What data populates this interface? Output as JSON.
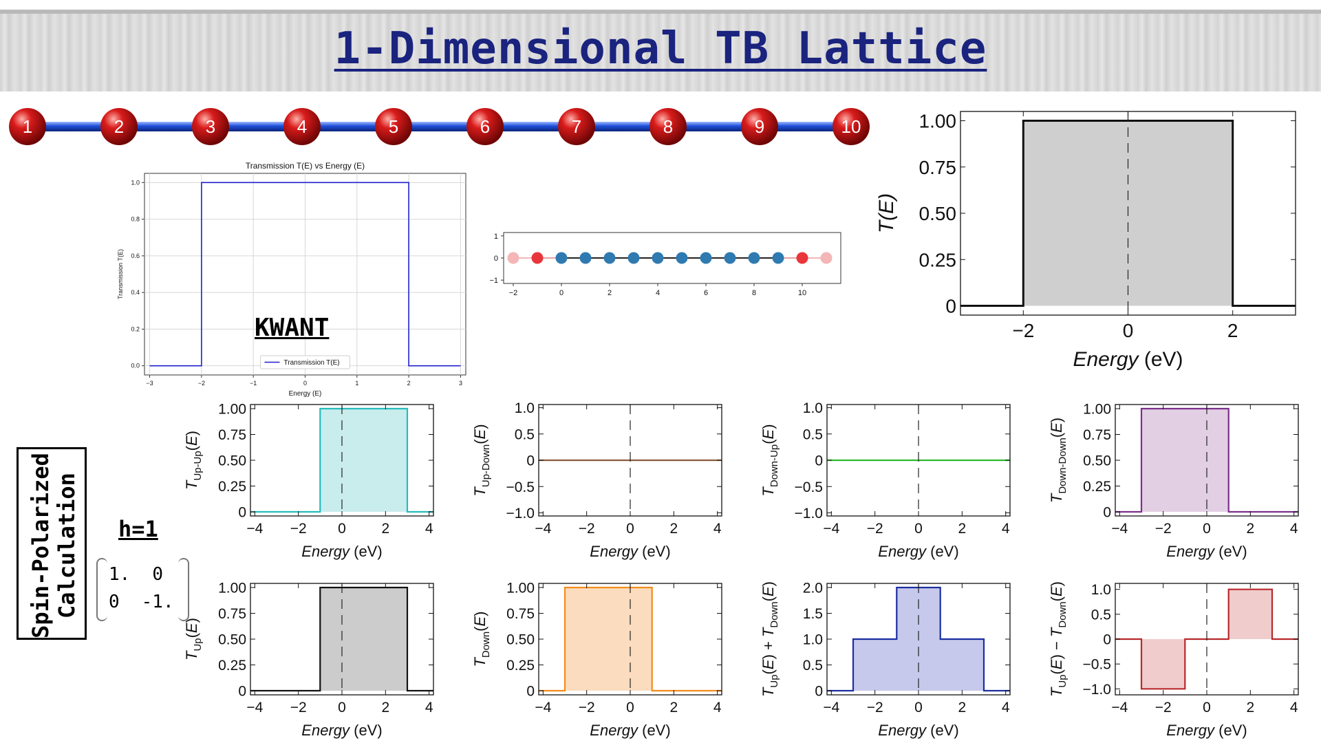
{
  "header": {
    "title": "1-Dimensional TB Lattice"
  },
  "sites": {
    "labels": [
      "1",
      "2",
      "3",
      "4",
      "5",
      "6",
      "7",
      "8",
      "9",
      "10"
    ],
    "atom_color": "#d81b1b",
    "bond_color": "#1e4fd8"
  },
  "sidebar": {
    "spin_label": "Spin-Polarized Calculation",
    "h_label": "h=1",
    "matrix": [
      [
        "1.",
        "0"
      ],
      [
        "0",
        "-1."
      ]
    ]
  },
  "kwant_label": "KWANT",
  "chart_data": [
    {
      "id": "kwant",
      "type": "line",
      "title": "Transmission T(E) vs Energy (E)",
      "xlabel": "Energy (E)",
      "ylabel": "Transmission T(E)",
      "xlim": [
        -3.1,
        3.1
      ],
      "ylim": [
        -0.05,
        1.05
      ],
      "xticks": [
        -3,
        -2,
        -1,
        0,
        1,
        2,
        3
      ],
      "yticks": [
        0.0,
        0.2,
        0.4,
        0.6,
        0.8,
        1.0
      ],
      "xtick_labels": [
        "−3",
        "−2",
        "−1",
        "0",
        "1",
        "2",
        "3"
      ],
      "ytick_labels": [
        "0.0",
        "0.2",
        "0.4",
        "0.6",
        "0.8",
        "1.0"
      ],
      "grid": true,
      "legend": "bottom-center",
      "color": "#1f1fd0",
      "series": [
        {
          "name": "Transmission T(E)",
          "x": [
            -3,
            -2,
            -2,
            2,
            2,
            3
          ],
          "y": [
            0,
            0,
            1,
            1,
            0,
            0
          ]
        }
      ]
    },
    {
      "id": "lattice",
      "type": "scatter",
      "xlim": [
        -2.4,
        11.6
      ],
      "ylim": [
        -1.15,
        1.15
      ],
      "xticks": [
        -2,
        0,
        2,
        4,
        6,
        8,
        10
      ],
      "yticks": [
        -1,
        0,
        1
      ],
      "xtick_labels": [
        "−2",
        "0",
        "2",
        "4",
        "6",
        "8",
        "10"
      ],
      "ytick_labels": [
        "−1",
        "0",
        "1"
      ],
      "points": [
        {
          "x": -2,
          "y": 0,
          "color": "#f4b6b6"
        },
        {
          "x": -1,
          "y": 0,
          "color": "#e8363a"
        },
        {
          "x": 0,
          "y": 0,
          "color": "#2f7ab0"
        },
        {
          "x": 1,
          "y": 0,
          "color": "#2f7ab0"
        },
        {
          "x": 2,
          "y": 0,
          "color": "#2f7ab0"
        },
        {
          "x": 3,
          "y": 0,
          "color": "#2f7ab0"
        },
        {
          "x": 4,
          "y": 0,
          "color": "#2f7ab0"
        },
        {
          "x": 5,
          "y": 0,
          "color": "#2f7ab0"
        },
        {
          "x": 6,
          "y": 0,
          "color": "#2f7ab0"
        },
        {
          "x": 7,
          "y": 0,
          "color": "#2f7ab0"
        },
        {
          "x": 8,
          "y": 0,
          "color": "#2f7ab0"
        },
        {
          "x": 9,
          "y": 0,
          "color": "#2f7ab0"
        },
        {
          "x": 10,
          "y": 0,
          "color": "#e8363a"
        },
        {
          "x": 11,
          "y": 0,
          "color": "#f4b6b6"
        }
      ]
    },
    {
      "id": "main",
      "type": "area",
      "xlabel": "Energy (eV)",
      "ylabel": "T(E)",
      "xlim": [
        -3.2,
        3.2
      ],
      "ylim": [
        -0.05,
        1.05
      ],
      "xticks": [
        -2,
        0,
        2
      ],
      "yticks": [
        0,
        0.25,
        0.5,
        0.75,
        1.0
      ],
      "xtick_labels": [
        "−2",
        "0",
        "2"
      ],
      "ytick_labels": [
        "0",
        "0.25",
        "0.50",
        "0.75",
        "1.00"
      ],
      "line_color": "#111111",
      "fill_color": "#cfcfcf",
      "dashed_zero": true,
      "series": [
        {
          "x": [
            -3.2,
            -2,
            -2,
            2,
            2,
            3.2
          ],
          "y": [
            0,
            0,
            1,
            1,
            0,
            0
          ]
        }
      ]
    },
    {
      "id": "up_up",
      "type": "area",
      "xlabel": "Energy (eV)",
      "ylabel": "T_Up-Up(E)",
      "xlim": [
        -4.2,
        4.2
      ],
      "ylim": [
        -0.04,
        1.04
      ],
      "xticks": [
        -4,
        -2,
        0,
        2,
        4
      ],
      "yticks": [
        0,
        0.25,
        0.5,
        0.75,
        1.0
      ],
      "xtick_labels": [
        "−4",
        "−2",
        "0",
        "2",
        "4"
      ],
      "ytick_labels": [
        "0",
        "0.25",
        "0.50",
        "0.75",
        "1.00"
      ],
      "line_color": "#26bcbc",
      "fill_color": "#c9ecec",
      "dashed_zero": true,
      "series": [
        {
          "x": [
            -4.2,
            -1,
            -1,
            3,
            3,
            4.2
          ],
          "y": [
            0,
            0,
            1,
            1,
            0,
            0
          ]
        }
      ]
    },
    {
      "id": "up_down",
      "type": "line",
      "xlabel": "Energy (eV)",
      "ylabel": "T_Up-Down(E)",
      "xlim": [
        -4.2,
        4.2
      ],
      "ylim": [
        -1.06,
        1.06
      ],
      "xticks": [
        -4,
        -2,
        0,
        2,
        4
      ],
      "yticks": [
        -1,
        -0.5,
        0,
        0.5,
        1
      ],
      "xtick_labels": [
        "−4",
        "−2",
        "0",
        "2",
        "4"
      ],
      "ytick_labels": [
        "−1.0",
        "−0.5",
        "0",
        "0.5",
        "1.0"
      ],
      "line_color": "#8a5a3a",
      "fill_color": "none",
      "dashed_zero": true,
      "series": [
        {
          "x": [
            -4.2,
            4.2
          ],
          "y": [
            0,
            0
          ]
        }
      ]
    },
    {
      "id": "down_up",
      "type": "line",
      "xlabel": "Energy (eV)",
      "ylabel": "T_Down-Up(E)",
      "xlim": [
        -4.2,
        4.2
      ],
      "ylim": [
        -1.06,
        1.06
      ],
      "xticks": [
        -4,
        -2,
        0,
        2,
        4
      ],
      "yticks": [
        -1,
        -0.5,
        0,
        0.5,
        1
      ],
      "xtick_labels": [
        "−4",
        "−2",
        "0",
        "2",
        "4"
      ],
      "ytick_labels": [
        "−1.0",
        "−0.5",
        "0",
        "0.5",
        "1.0"
      ],
      "line_color": "#2eb82e",
      "fill_color": "none",
      "dashed_zero": true,
      "series": [
        {
          "x": [
            -4.2,
            4.2
          ],
          "y": [
            0,
            0
          ]
        }
      ]
    },
    {
      "id": "down_down",
      "type": "area",
      "xlabel": "Energy (eV)",
      "ylabel": "T_Down-Down(E)",
      "xlim": [
        -4.2,
        4.2
      ],
      "ylim": [
        -0.04,
        1.04
      ],
      "xticks": [
        -4,
        -2,
        0,
        2,
        4
      ],
      "yticks": [
        0,
        0.25,
        0.5,
        0.75,
        1.0
      ],
      "xtick_labels": [
        "−4",
        "−2",
        "0",
        "2",
        "4"
      ],
      "ytick_labels": [
        "0",
        "0.25",
        "0.50",
        "0.75",
        "1.00"
      ],
      "line_color": "#7b2f8c",
      "fill_color": "#e2cfe3",
      "dashed_zero": true,
      "series": [
        {
          "x": [
            -4.2,
            -3,
            -3,
            1,
            1,
            4.2
          ],
          "y": [
            0,
            0,
            1,
            1,
            0,
            0
          ]
        }
      ]
    },
    {
      "id": "t_up",
      "type": "area",
      "xlabel": "Energy (eV)",
      "ylabel": "T_Up(E)",
      "xlim": [
        -4.2,
        4.2
      ],
      "ylim": [
        -0.04,
        1.04
      ],
      "xticks": [
        -4,
        -2,
        0,
        2,
        4
      ],
      "yticks": [
        0,
        0.25,
        0.5,
        0.75,
        1.0
      ],
      "xtick_labels": [
        "−4",
        "−2",
        "0",
        "2",
        "4"
      ],
      "ytick_labels": [
        "0",
        "0.25",
        "0.50",
        "0.75",
        "1.00"
      ],
      "line_color": "#111111",
      "fill_color": "#cccccc",
      "dashed_zero": true,
      "series": [
        {
          "x": [
            -4.2,
            -1,
            -1,
            3,
            3,
            4.2
          ],
          "y": [
            0,
            0,
            1,
            1,
            0,
            0
          ]
        }
      ]
    },
    {
      "id": "t_down",
      "type": "area",
      "xlabel": "Energy (eV)",
      "ylabel": "T_Down(E)",
      "xlim": [
        -4.2,
        4.2
      ],
      "ylim": [
        -0.04,
        1.04
      ],
      "xticks": [
        -4,
        -2,
        0,
        2,
        4
      ],
      "yticks": [
        0,
        0.25,
        0.5,
        0.75,
        1.0
      ],
      "xtick_labels": [
        "−4",
        "−2",
        "0",
        "2",
        "4"
      ],
      "ytick_labels": [
        "0",
        "0.25",
        "0.50",
        "0.75",
        "1.00"
      ],
      "line_color": "#f28c1a",
      "fill_color": "#fcdcbf",
      "dashed_zero": true,
      "series": [
        {
          "x": [
            -4.2,
            -3,
            -3,
            1,
            1,
            4.2
          ],
          "y": [
            0,
            0,
            1,
            1,
            0,
            0
          ]
        }
      ]
    },
    {
      "id": "t_sum",
      "type": "area",
      "xlabel": "Energy (eV)",
      "ylabel": "T_Up(E) + T_Down(E)",
      "xlim": [
        -4.2,
        4.2
      ],
      "ylim": [
        -0.08,
        2.08
      ],
      "xticks": [
        -4,
        -2,
        0,
        2,
        4
      ],
      "yticks": [
        0,
        0.5,
        1.0,
        1.5,
        2.0
      ],
      "xtick_labels": [
        "−4",
        "−2",
        "0",
        "2",
        "4"
      ],
      "ytick_labels": [
        "0",
        "0.5",
        "1.0",
        "1.5",
        "2.0"
      ],
      "line_color": "#1c2ea0",
      "fill_color": "#c6c9ec",
      "dashed_zero": true,
      "series": [
        {
          "x": [
            -4.2,
            -3,
            -3,
            -1,
            -1,
            1,
            1,
            3,
            3,
            4.2
          ],
          "y": [
            0,
            0,
            1,
            1,
            2,
            2,
            1,
            1,
            0,
            0
          ]
        }
      ]
    },
    {
      "id": "t_diff",
      "type": "area",
      "xlabel": "Energy (eV)",
      "ylabel": "T_Up(E) − T_Down(E)",
      "xlim": [
        -4.2,
        4.2
      ],
      "ylim": [
        -1.12,
        1.12
      ],
      "xticks": [
        -4,
        -2,
        0,
        2,
        4
      ],
      "yticks": [
        -1,
        -0.5,
        0,
        0.5,
        1
      ],
      "xtick_labels": [
        "−4",
        "−2",
        "0",
        "2",
        "4"
      ],
      "ytick_labels": [
        "−1.0",
        "−0.5",
        "0",
        "0.5",
        "1.0"
      ],
      "line_color": "#b8282a",
      "fill_color": "#f0cccc",
      "dashed_zero": true,
      "series": [
        {
          "x": [
            -4.2,
            -3,
            -3,
            -1,
            -1,
            1,
            1,
            3,
            3,
            4.2
          ],
          "y": [
            0,
            0,
            -1,
            -1,
            0,
            0,
            1,
            1,
            0,
            0
          ]
        }
      ]
    }
  ]
}
